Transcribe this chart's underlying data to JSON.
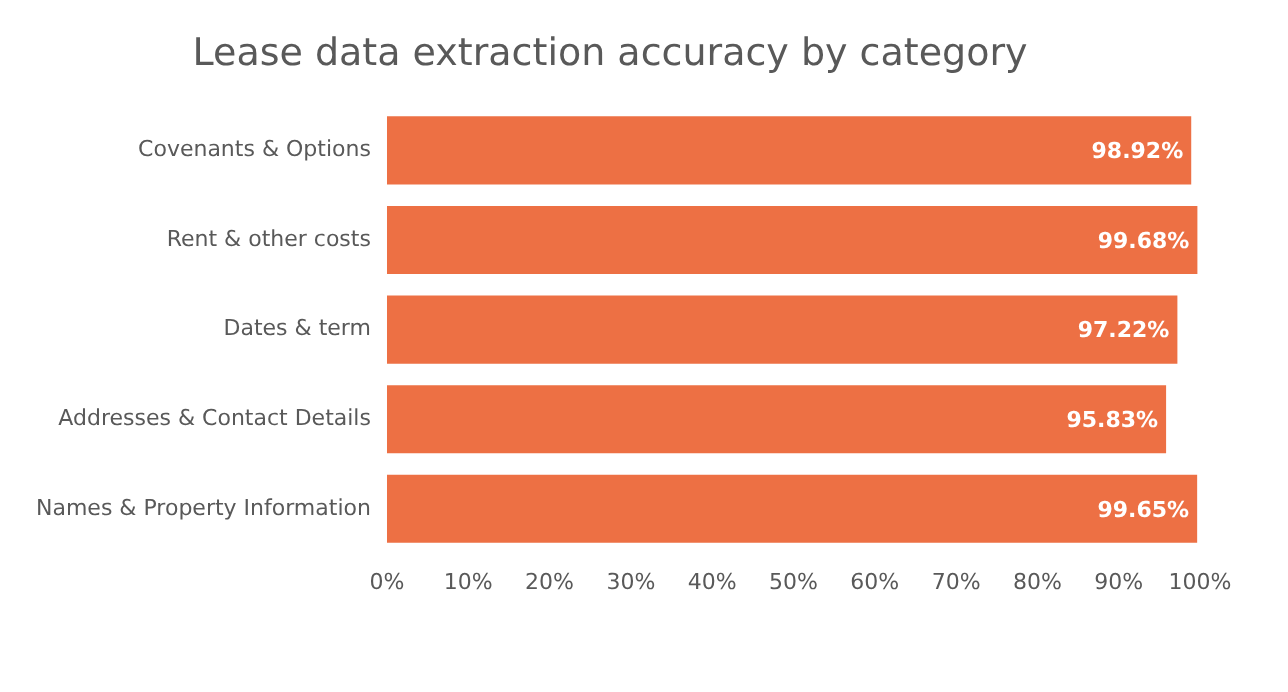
{
  "chart_data": {
    "type": "bar",
    "orientation": "horizontal",
    "title": "Lease data extraction accuracy by category",
    "categories": [
      "Covenants & Options",
      "Rent & other costs",
      "Dates & term",
      "Addresses & Contact Details",
      "Names & Property Information"
    ],
    "values": [
      98.92,
      99.68,
      97.22,
      95.83,
      99.65
    ],
    "value_labels": [
      "98.92%",
      "99.68%",
      "97.22%",
      "95.83%",
      "99.65%"
    ],
    "color": "#ed7044",
    "xlim": [
      0,
      100
    ],
    "xticks": [
      {
        "value": 0,
        "label": "0%"
      },
      {
        "value": 10,
        "label": "10%"
      },
      {
        "value": 20,
        "label": "20%"
      },
      {
        "value": 30,
        "label": "30%"
      },
      {
        "value": 40,
        "label": "40%"
      },
      {
        "value": 50,
        "label": "50%"
      },
      {
        "value": 60,
        "label": "60%"
      },
      {
        "value": 70,
        "label": "70%"
      },
      {
        "value": 80,
        "label": "80%"
      },
      {
        "value": 90,
        "label": "90%"
      },
      {
        "value": 100,
        "label": "100%"
      }
    ],
    "grid": false,
    "legend": false
  }
}
